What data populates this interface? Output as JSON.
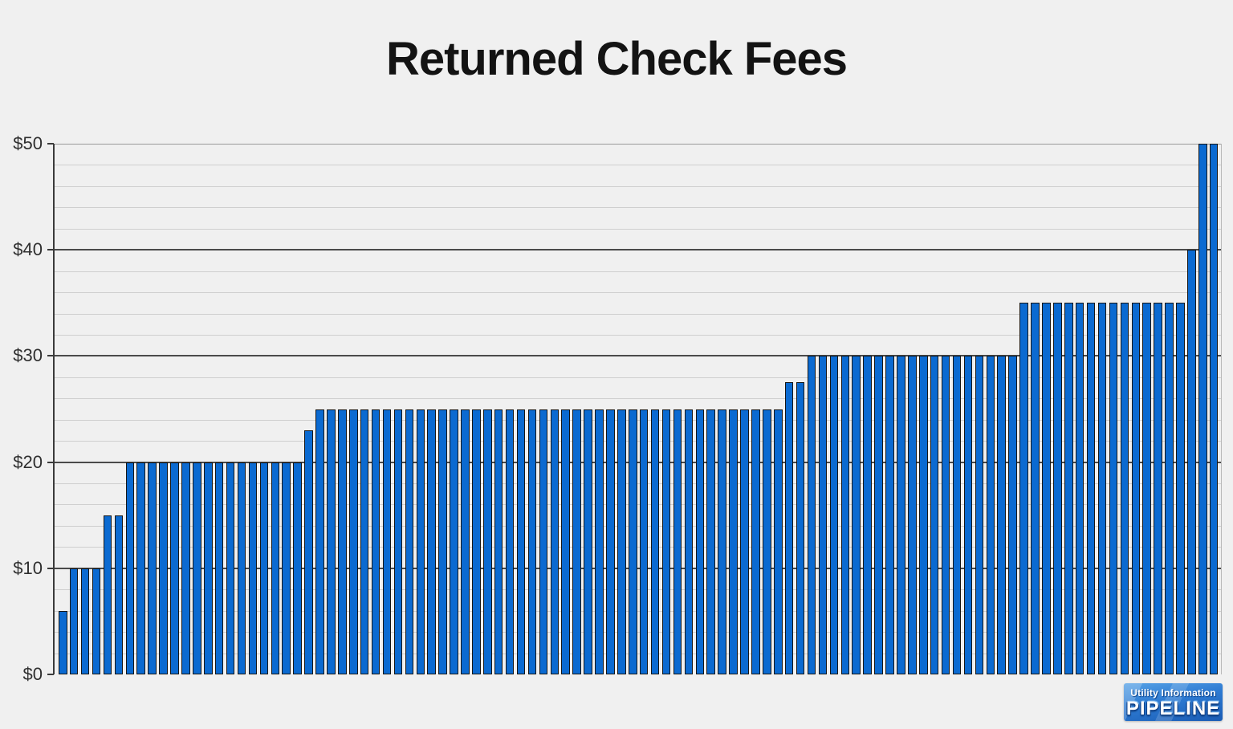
{
  "title": "Returned Check Fees",
  "logo": {
    "line1": "Utility Information",
    "line2": "PIPELINE"
  },
  "colors": {
    "background": "#f0f0f0",
    "bar_fill": "#0b6ad1",
    "bar_outline": "#161616",
    "grid_major": "#4a4a4a",
    "grid_minor": "#cfcfcf",
    "grid_top": "#999999",
    "axis_line": "#3a3a3a",
    "tick_label_text": "#2f2f2f",
    "title_text": "#131313",
    "logo_blue_top": "#56a2e6",
    "logo_blue_bottom": "#1a5cb4"
  },
  "chart_data": {
    "type": "bar",
    "title": "Returned Check Fees",
    "xlabel": "",
    "ylabel": "",
    "unit": "USD",
    "ylim": [
      0,
      50
    ],
    "y_tick_interval_major": 10,
    "y_tick_interval_minor": 2,
    "y_tick_labels": [
      "$0",
      "$10",
      "$20",
      "$30",
      "$40",
      "$50"
    ],
    "x_tick_labels": "none",
    "grid": "horizontal, major dark + minor light",
    "legend": "none",
    "n_bars": 104,
    "values": [
      6,
      10,
      10,
      10,
      15,
      15,
      20,
      20,
      20,
      20,
      20,
      20,
      20,
      20,
      20,
      20,
      20,
      20,
      20,
      20,
      20,
      20,
      23,
      25,
      25,
      25,
      25,
      25,
      25,
      25,
      25,
      25,
      25,
      25,
      25,
      25,
      25,
      25,
      25,
      25,
      25,
      25,
      25,
      25,
      25,
      25,
      25,
      25,
      25,
      25,
      25,
      25,
      25,
      25,
      25,
      25,
      25,
      25,
      25,
      25,
      25,
      25,
      25,
      25,
      25,
      27.5,
      27.5,
      30,
      30,
      30,
      30,
      30,
      30,
      30,
      30,
      30,
      30,
      30,
      30,
      30,
      30,
      30,
      30,
      30,
      30,
      30,
      35,
      35,
      35,
      35,
      35,
      35,
      35,
      35,
      35,
      35,
      35,
      35,
      35,
      35,
      35,
      40,
      50,
      50
    ],
    "value_distribution": [
      {
        "fee": 6,
        "count": 1
      },
      {
        "fee": 10,
        "count": 3
      },
      {
        "fee": 15,
        "count": 2
      },
      {
        "fee": 20,
        "count": 16
      },
      {
        "fee": 23,
        "count": 1
      },
      {
        "fee": 25,
        "count": 42
      },
      {
        "fee": 27.5,
        "count": 2
      },
      {
        "fee": 30,
        "count": 19
      },
      {
        "fee": 35,
        "count": 15
      },
      {
        "fee": 40,
        "count": 1
      },
      {
        "fee": 50,
        "count": 2
      }
    ]
  }
}
